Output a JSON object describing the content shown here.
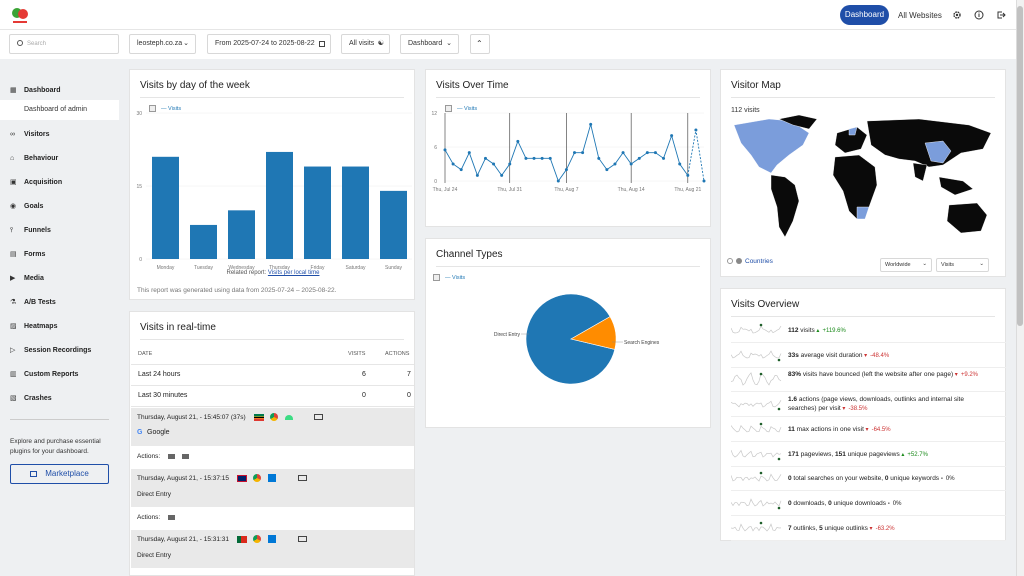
{
  "header": {
    "nav_dashboard": "Dashboard",
    "nav_all_websites": "All Websites",
    "icons": [
      "gear-icon",
      "help-icon",
      "logout-icon"
    ]
  },
  "filters": {
    "search_placeholder": "Search",
    "site": "leosteph.co.za",
    "date_range": "From 2025-07-24 to 2025-08-22",
    "segment": "All visits",
    "dashboard": "Dashboard"
  },
  "sidebar": {
    "items": [
      {
        "label": "Dashboard",
        "icon": "grid-icon"
      },
      {
        "label": "Visitors",
        "icon": "visitors-icon"
      },
      {
        "label": "Behaviour",
        "icon": "bell-icon"
      },
      {
        "label": "Acquisition",
        "icon": "acquisition-icon"
      },
      {
        "label": "Goals",
        "icon": "goals-icon"
      },
      {
        "label": "Funnels",
        "icon": "funnel-icon"
      },
      {
        "label": "Forms",
        "icon": "forms-icon"
      },
      {
        "label": "Media",
        "icon": "media-icon"
      },
      {
        "label": "A/B Tests",
        "icon": "flask-icon"
      },
      {
        "label": "Heatmaps",
        "icon": "heatmap-icon"
      },
      {
        "label": "Session Recordings",
        "icon": "play-icon"
      },
      {
        "label": "Custom Reports",
        "icon": "reports-icon"
      },
      {
        "label": "Crashes",
        "icon": "crash-icon"
      }
    ],
    "sub_item": "Dashboard of admin",
    "promo_text": "Explore and purchase essential plugins for your dashboard.",
    "marketplace": "Marketplace"
  },
  "day_of_week": {
    "title": "Visits by day of the week",
    "legend": "Visits",
    "related_prefix": "Related report:",
    "related_link": "Visits per local time",
    "footer": "This report was generated using data from 2025-07-24 – 2025-08-22."
  },
  "realtime": {
    "title": "Visits in real-time",
    "col_date": "DATE",
    "col_visits": "VISITS",
    "col_actions": "ACTIONS",
    "rows": [
      {
        "label": "Last 24 hours",
        "visits": "6",
        "actions": "7"
      },
      {
        "label": "Last 30 minutes",
        "visits": "0",
        "actions": "0"
      }
    ],
    "visits": [
      {
        "time": "Thursday, August 21, - 15:45:07 (37s)",
        "referrer": "Google",
        "actions_label": "Actions:"
      },
      {
        "time": "Thursday, August 21, - 15:37:15",
        "referrer": "Direct Entry",
        "actions_label": "Actions:"
      },
      {
        "time": "Thursday, August 21, - 15:31:31",
        "referrer": "Direct Entry",
        "actions_label": ""
      }
    ]
  },
  "visits_over_time": {
    "title": "Visits Over Time",
    "legend": "Visits"
  },
  "channel_types": {
    "title": "Channel Types",
    "legend": "Visits"
  },
  "visitor_map": {
    "title": "Visitor Map",
    "count": "112 visits",
    "countries_link": "Countries",
    "region_select": "Worldwide",
    "metric_select": "Visits"
  },
  "overview": {
    "title": "Visits Overview",
    "rows": [
      {
        "b1": "112",
        "t1": " visits",
        "b2": "",
        "t2": "",
        "change": "+119.6%",
        "good": true
      },
      {
        "b1": "33s",
        "t1": " average visit duration",
        "b2": "",
        "t2": "",
        "change": "-48.4%",
        "good": false
      },
      {
        "b1": "83%",
        "t1": " visits have bounced (left the website after one page)",
        "b2": "",
        "t2": "",
        "change": "+9.2%",
        "good": false
      },
      {
        "b1": "1.6",
        "t1": " actions (page views, downloads, outlinks and internal site searches) per visit",
        "b2": "",
        "t2": "",
        "change": "-38.5%",
        "good": false
      },
      {
        "b1": "11",
        "t1": " max actions in one visit",
        "b2": "",
        "t2": "",
        "change": "-64.5%",
        "good": false
      },
      {
        "b1": "171",
        "t1": " pageviews, ",
        "b2": "151",
        "t2": " unique pageviews",
        "change": "+52.7%",
        "good": true
      },
      {
        "b1": "0",
        "t1": " total searches on your website, ",
        "b2": "0",
        "t2": " unique keywords",
        "change": "0%",
        "good": null
      },
      {
        "b1": "0",
        "t1": " downloads, ",
        "b2": "0",
        "t2": " unique downloads",
        "change": "0%",
        "good": null
      },
      {
        "b1": "7",
        "t1": " outlinks, ",
        "b2": "5",
        "t2": " unique outlinks",
        "change": "-63.2%",
        "good": false
      }
    ]
  },
  "chart_data": [
    {
      "type": "bar",
      "title": "Visits by day of the week",
      "categories": [
        "Monday",
        "Tuesday",
        "Wednesday",
        "Thursday",
        "Friday",
        "Saturday",
        "Sunday"
      ],
      "series": [
        {
          "name": "Visits",
          "values": [
            21,
            7,
            10,
            22,
            19,
            19,
            14
          ]
        }
      ],
      "yticks": [
        "30",
        "15",
        "0"
      ],
      "ylim": [
        0,
        30
      ],
      "color": "#1f77b4"
    },
    {
      "type": "line",
      "title": "Visits Over Time",
      "xticks": [
        "Thu, Jul 24",
        "Thu, Jul 31",
        "Thu, Aug 7",
        "Thu, Aug 14",
        "Thu, Aug 21"
      ],
      "yticks": [
        "12",
        "6",
        "0"
      ],
      "ylim": [
        0,
        12
      ],
      "series": [
        {
          "name": "Visits",
          "values": [
            5.5,
            3,
            2,
            5,
            1,
            4,
            3,
            1,
            3,
            7,
            4,
            4,
            4,
            4,
            0,
            2,
            5,
            5,
            10,
            4,
            2,
            3,
            5,
            3,
            4,
            5,
            5,
            4,
            8,
            3,
            1,
            9,
            0
          ]
        }
      ],
      "partial_last": 2,
      "color": "#1f77b4"
    },
    {
      "type": "pie",
      "title": "Channel Types",
      "labels": [
        "Direct Entry",
        "Search Engines"
      ],
      "values": [
        88,
        12
      ],
      "colors": [
        "#1f77b4",
        "#ff8c00"
      ]
    }
  ]
}
